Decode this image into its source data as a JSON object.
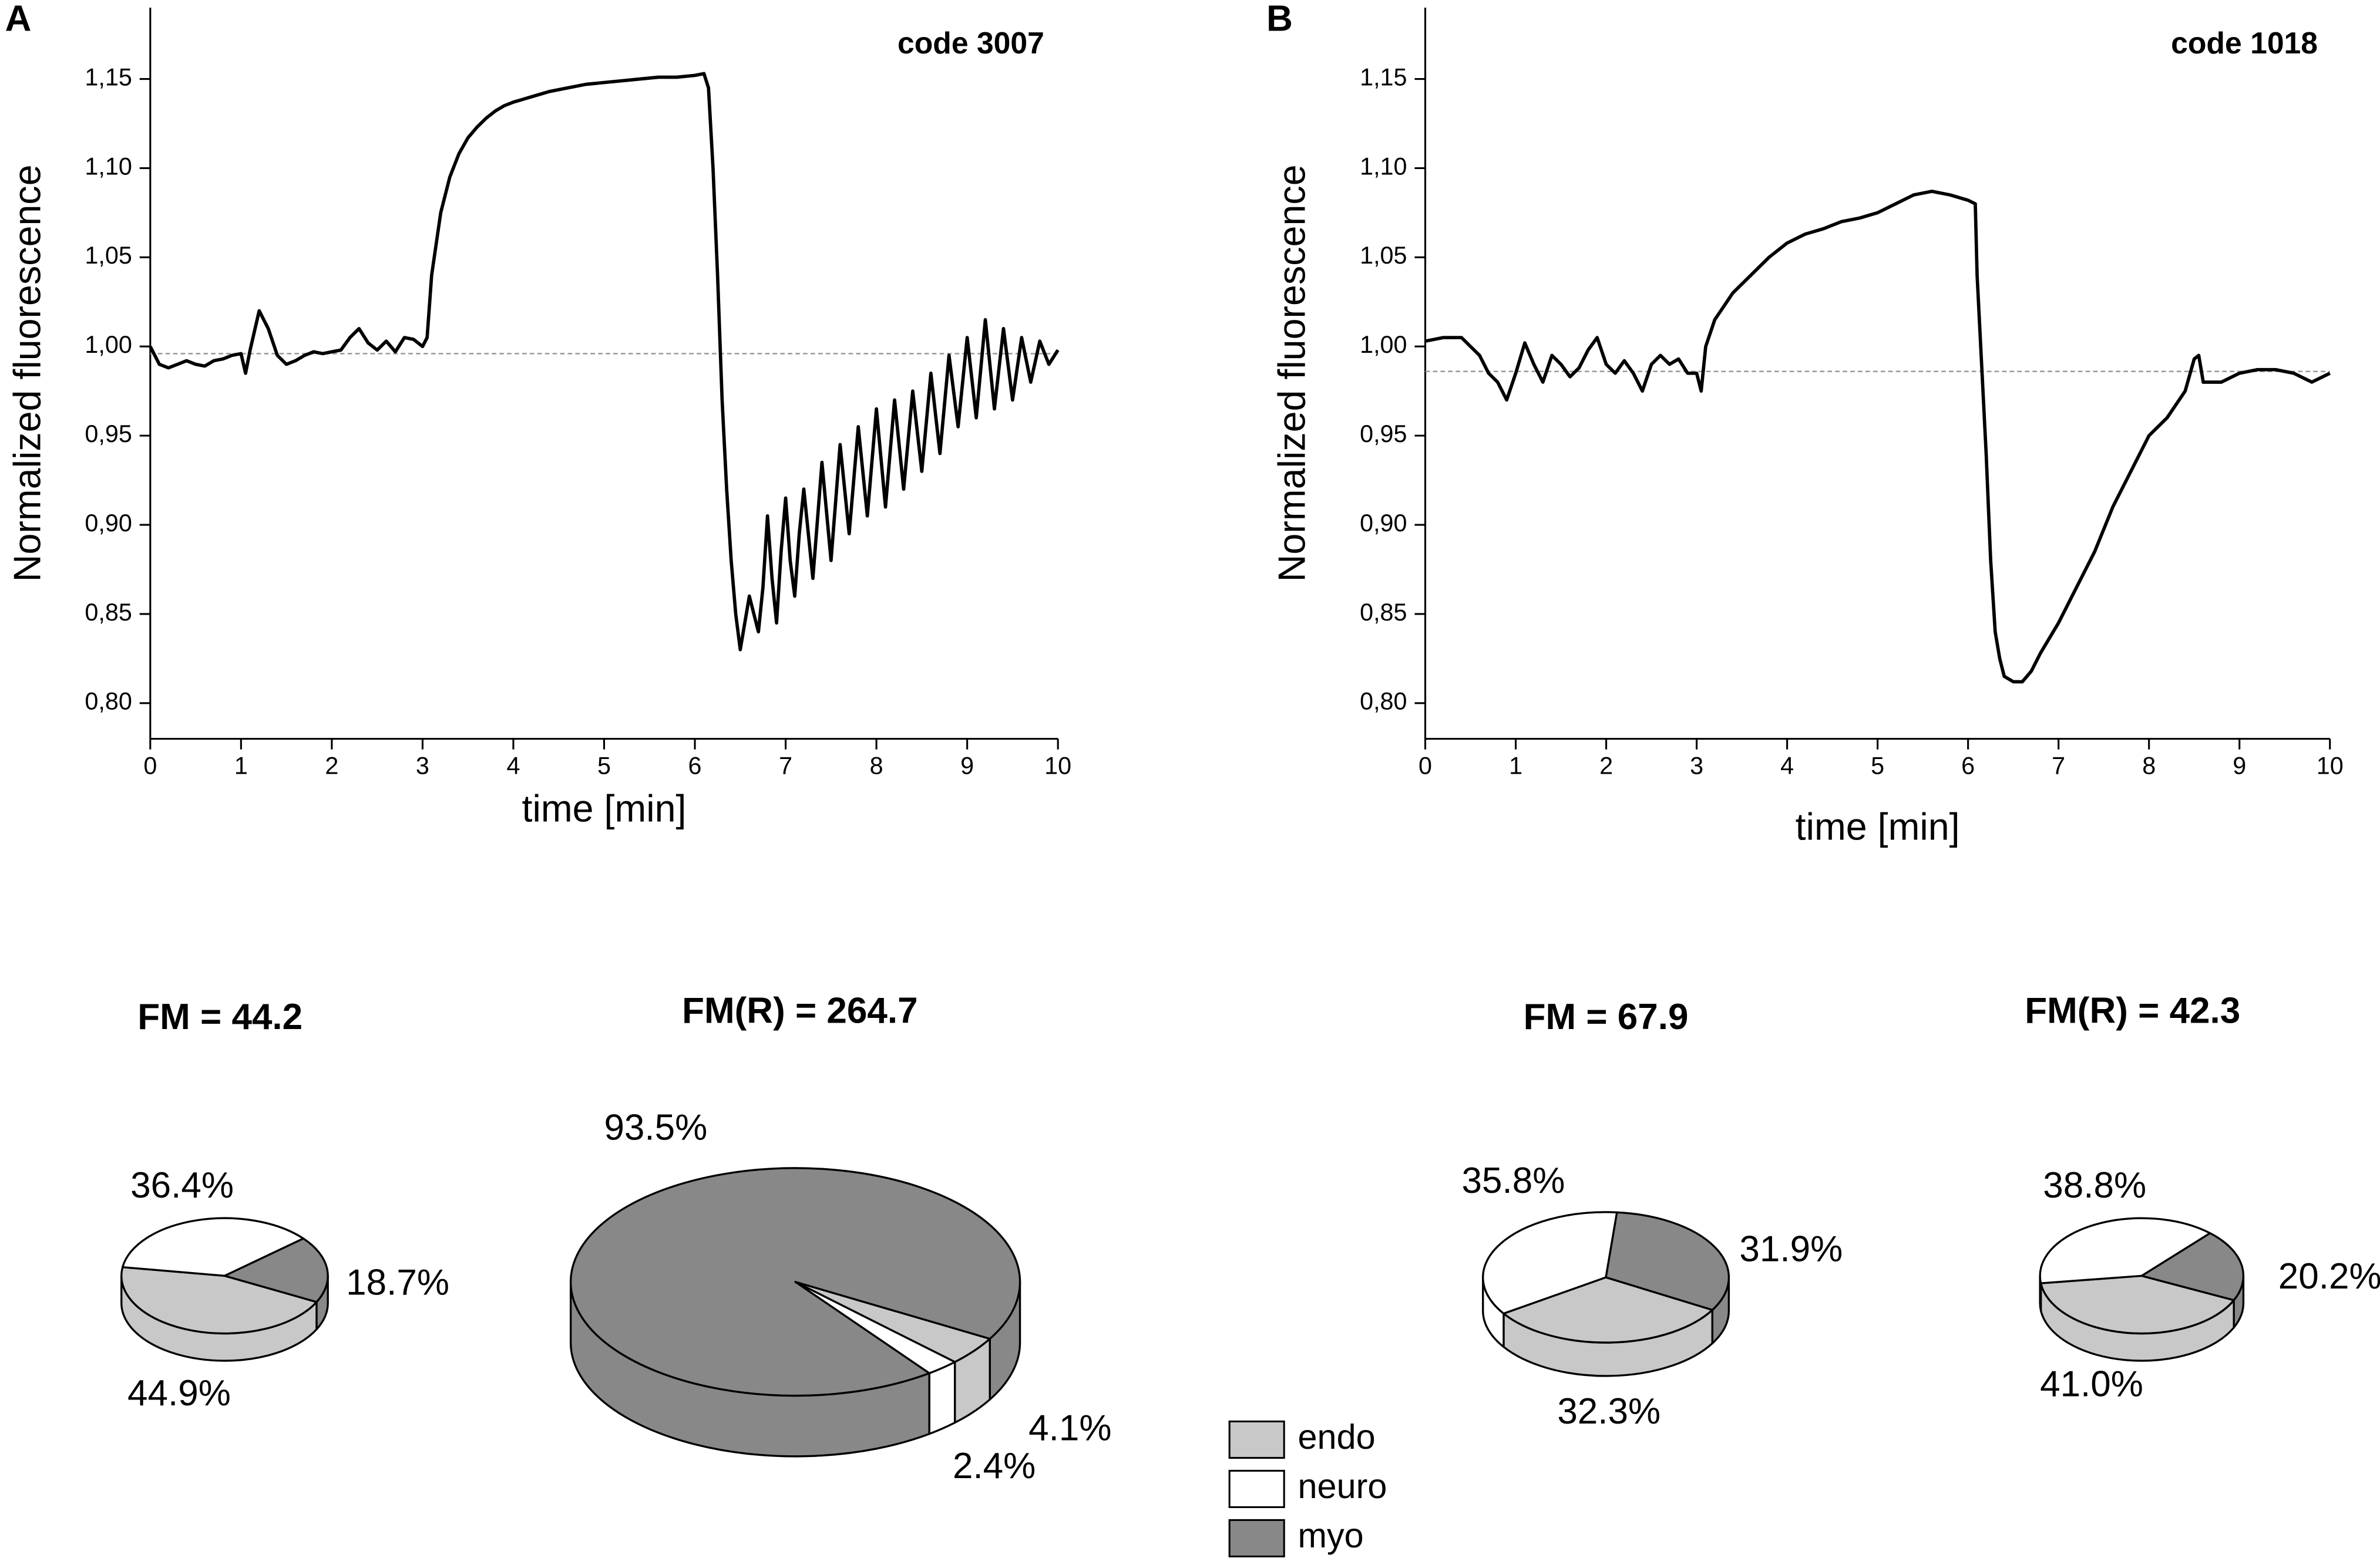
{
  "chart_data": [
    {
      "type": "line",
      "panel": "A",
      "title": "code 3007",
      "xlabel": "time [min]",
      "ylabel": "Normalized fluorescence",
      "color": "#000000",
      "reference_line": 0.996,
      "reference_color": "#999999",
      "xlim": [
        0,
        10
      ],
      "ylim": [
        0.78,
        1.19
      ],
      "xticks": [
        0,
        1,
        2,
        3,
        4,
        5,
        6,
        7,
        8,
        9,
        10
      ],
      "yticks": [
        {
          "value": 0.8,
          "label": "0,80"
        },
        {
          "value": 0.85,
          "label": "0,85"
        },
        {
          "value": 0.9,
          "label": "0,90"
        },
        {
          "value": 0.95,
          "label": "0,95"
        },
        {
          "value": 1.0,
          "label": "1,00"
        },
        {
          "value": 1.05,
          "label": "1,05"
        },
        {
          "value": 1.1,
          "label": "1,10"
        },
        {
          "value": 1.15,
          "label": "1,15"
        }
      ],
      "x": [
        0,
        0.1,
        0.2,
        0.3,
        0.4,
        0.5,
        0.6,
        0.7,
        0.8,
        0.9,
        1.0,
        1.05,
        1.1,
        1.2,
        1.3,
        1.4,
        1.5,
        1.6,
        1.7,
        1.8,
        1.9,
        2.0,
        2.1,
        2.2,
        2.3,
        2.4,
        2.5,
        2.6,
        2.7,
        2.8,
        2.9,
        3.0,
        3.05,
        3.1,
        3.2,
        3.3,
        3.4,
        3.5,
        3.6,
        3.7,
        3.8,
        3.9,
        4.0,
        4.2,
        4.4,
        4.6,
        4.8,
        5.0,
        5.2,
        5.4,
        5.6,
        5.8,
        6.0,
        6.1,
        6.15,
        6.2,
        6.25,
        6.3,
        6.35,
        6.4,
        6.45,
        6.5,
        6.55,
        6.6,
        6.65,
        6.7,
        6.75,
        6.8,
        6.85,
        6.9,
        6.95,
        7.0,
        7.05,
        7.1,
        7.15,
        7.2,
        7.3,
        7.4,
        7.5,
        7.6,
        7.7,
        7.8,
        7.9,
        8.0,
        8.1,
        8.2,
        8.3,
        8.4,
        8.5,
        8.6,
        8.7,
        8.8,
        8.9,
        9.0,
        9.1,
        9.2,
        9.3,
        9.4,
        9.5,
        9.6,
        9.7,
        9.8,
        9.9,
        10.0
      ],
      "values": [
        1.0,
        0.99,
        0.988,
        0.99,
        0.992,
        0.99,
        0.989,
        0.992,
        0.993,
        0.995,
        0.996,
        0.985,
        0.998,
        1.02,
        1.01,
        0.995,
        0.99,
        0.992,
        0.995,
        0.997,
        0.996,
        0.997,
        0.998,
        1.005,
        1.01,
        1.002,
        0.998,
        1.003,
        0.997,
        1.005,
        1.004,
        1.0,
        1.005,
        1.04,
        1.075,
        1.095,
        1.108,
        1.117,
        1.123,
        1.128,
        1.132,
        1.135,
        1.137,
        1.14,
        1.143,
        1.145,
        1.147,
        1.148,
        1.149,
        1.15,
        1.151,
        1.151,
        1.152,
        1.153,
        1.145,
        1.1,
        1.04,
        0.97,
        0.92,
        0.88,
        0.85,
        0.83,
        0.845,
        0.86,
        0.85,
        0.84,
        0.865,
        0.905,
        0.87,
        0.845,
        0.885,
        0.915,
        0.88,
        0.86,
        0.895,
        0.92,
        0.87,
        0.935,
        0.88,
        0.945,
        0.895,
        0.955,
        0.905,
        0.965,
        0.91,
        0.97,
        0.92,
        0.975,
        0.93,
        0.985,
        0.94,
        0.995,
        0.955,
        1.005,
        0.96,
        1.015,
        0.965,
        1.01,
        0.97,
        1.005,
        0.98,
        1.003,
        0.99,
        0.998
      ]
    },
    {
      "type": "line",
      "panel": "B",
      "title": "code 1018",
      "xlabel": "time [min]",
      "ylabel": "Normalized fluorescence",
      "color": "#000000",
      "reference_line": 0.986,
      "reference_color": "#999999",
      "xlim": [
        0,
        10
      ],
      "ylim": [
        0.78,
        1.19
      ],
      "xticks": [
        0,
        1,
        2,
        3,
        4,
        5,
        6,
        7,
        8,
        9,
        10
      ],
      "yticks": [
        {
          "value": 0.8,
          "label": "0,80"
        },
        {
          "value": 0.85,
          "label": "0,85"
        },
        {
          "value": 0.9,
          "label": "0,90"
        },
        {
          "value": 0.95,
          "label": "0,95"
        },
        {
          "value": 1.0,
          "label": "1,00"
        },
        {
          "value": 1.05,
          "label": "1,05"
        },
        {
          "value": 1.1,
          "label": "1,10"
        },
        {
          "value": 1.15,
          "label": "1,15"
        }
      ],
      "x": [
        0,
        0.2,
        0.4,
        0.5,
        0.6,
        0.7,
        0.8,
        0.9,
        1.0,
        1.1,
        1.2,
        1.3,
        1.4,
        1.5,
        1.6,
        1.7,
        1.8,
        1.9,
        2.0,
        2.1,
        2.2,
        2.3,
        2.4,
        2.5,
        2.6,
        2.7,
        2.8,
        2.9,
        3.0,
        3.05,
        3.1,
        3.2,
        3.4,
        3.6,
        3.8,
        4.0,
        4.2,
        4.4,
        4.6,
        4.8,
        5.0,
        5.2,
        5.4,
        5.6,
        5.8,
        6.0,
        6.08,
        6.1,
        6.15,
        6.2,
        6.25,
        6.3,
        6.35,
        6.4,
        6.5,
        6.6,
        6.7,
        6.8,
        7.0,
        7.2,
        7.4,
        7.6,
        7.8,
        8.0,
        8.2,
        8.4,
        8.5,
        8.55,
        8.6,
        8.8,
        9.0,
        9.2,
        9.4,
        9.6,
        9.8,
        10.0
      ],
      "values": [
        1.003,
        1.005,
        1.005,
        1.0,
        0.995,
        0.985,
        0.98,
        0.97,
        0.985,
        1.002,
        0.99,
        0.98,
        0.995,
        0.99,
        0.983,
        0.988,
        0.998,
        1.005,
        0.99,
        0.985,
        0.992,
        0.985,
        0.975,
        0.99,
        0.995,
        0.99,
        0.993,
        0.985,
        0.985,
        0.975,
        1.0,
        1.015,
        1.03,
        1.04,
        1.05,
        1.058,
        1.063,
        1.066,
        1.07,
        1.072,
        1.075,
        1.08,
        1.085,
        1.087,
        1.085,
        1.082,
        1.08,
        1.04,
        0.99,
        0.94,
        0.88,
        0.84,
        0.825,
        0.815,
        0.812,
        0.812,
        0.818,
        0.828,
        0.845,
        0.865,
        0.885,
        0.91,
        0.93,
        0.95,
        0.96,
        0.975,
        0.993,
        0.995,
        0.98,
        0.98,
        0.985,
        0.987,
        0.987,
        0.985,
        0.98,
        0.985
      ]
    },
    {
      "type": "pie",
      "title": "FM = 44.2",
      "values": [
        44.9,
        36.4,
        18.7
      ],
      "value_labels": [
        "44.9%",
        "36.4%",
        "18.7%"
      ]
    },
    {
      "type": "pie",
      "title": "FM(R) = 264.7",
      "values": [
        4.1,
        2.4,
        93.5
      ],
      "value_labels": [
        "4.1%",
        "2.4%",
        "93.5%"
      ]
    },
    {
      "type": "pie",
      "title": "FM = 67.9",
      "values": [
        32.3,
        35.8,
        31.9
      ],
      "value_labels": [
        "32.3%",
        "35.8%",
        "31.9%"
      ]
    },
    {
      "type": "pie",
      "title": "FM(R) = 42.3",
      "values": [
        41.0,
        38.8,
        20.2
      ],
      "value_labels": [
        "41.0%",
        "38.8%",
        "20.2%"
      ]
    }
  ],
  "legend": {
    "labels": [
      "endo",
      "neuro",
      "myo"
    ],
    "colors": [
      "#c8c8c8",
      "#ffffff",
      "#888888"
    ]
  }
}
